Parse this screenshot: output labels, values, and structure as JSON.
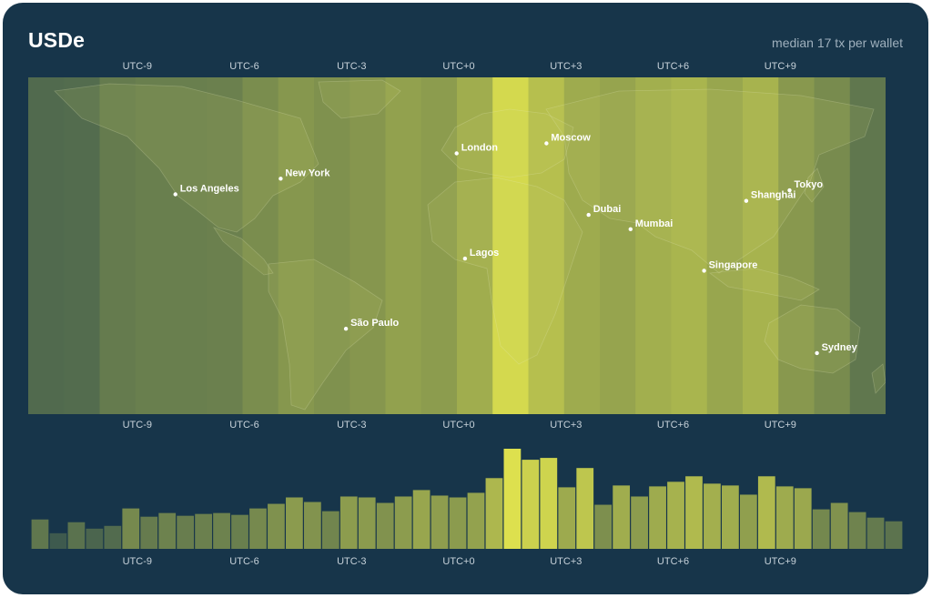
{
  "header": {
    "title": "USDe",
    "subtitle": "median 17 tx per wallet"
  },
  "colors": {
    "background": "#17354a",
    "low": "#3e5a4e",
    "high": "#dde04e",
    "land_tint": "#c9d06a",
    "city_text": "#ffffff",
    "tick_text": "#c7d2da"
  },
  "chart_data": {
    "type": "bar",
    "title": "USDe",
    "subtitle": "median 17 tx per wallet",
    "x_unit": "UTC offset (hours)",
    "x_range": [
      -12,
      12
    ],
    "bin_hours": 0.5,
    "tick_offsets": [
      -9,
      -6,
      -3,
      0,
      3,
      6,
      9
    ],
    "tick_labels": [
      "UTC-9",
      "UTC-6",
      "UTC-3",
      "UTC+0",
      "UTC+3",
      "UTC+6",
      "UTC+9"
    ],
    "values": [
      32,
      17,
      29,
      22,
      25,
      44,
      35,
      39,
      36,
      38,
      39,
      37,
      44,
      49,
      56,
      51,
      41,
      57,
      56,
      50,
      57,
      64,
      58,
      56,
      61,
      77,
      109,
      97,
      99,
      67,
      88,
      48,
      69,
      57,
      68,
      73,
      79,
      71,
      69,
      59,
      79,
      68,
      66,
      43,
      50,
      40,
      34,
      30
    ],
    "ylim": [
      0,
      115
    ],
    "grid": false,
    "legend": "none",
    "cities": [
      {
        "name": "Los Angeles",
        "lon": -118.2,
        "lat": 34.0
      },
      {
        "name": "New York",
        "lon": -74.0,
        "lat": 40.7
      },
      {
        "name": "São Paulo",
        "lon": -46.6,
        "lat": -23.5
      },
      {
        "name": "London",
        "lon": -0.1,
        "lat": 51.5
      },
      {
        "name": "Lagos",
        "lon": 3.4,
        "lat": 6.5
      },
      {
        "name": "Moscow",
        "lon": 37.6,
        "lat": 55.8
      },
      {
        "name": "Dubai",
        "lon": 55.3,
        "lat": 25.2
      },
      {
        "name": "Mumbai",
        "lon": 72.9,
        "lat": 19.1
      },
      {
        "name": "Singapore",
        "lon": 103.8,
        "lat": 1.35
      },
      {
        "name": "Shanghai",
        "lon": 121.5,
        "lat": 31.2
      },
      {
        "name": "Tokyo",
        "lon": 139.7,
        "lat": 35.7
      },
      {
        "name": "Sydney",
        "lon": 151.2,
        "lat": -33.9
      }
    ]
  }
}
